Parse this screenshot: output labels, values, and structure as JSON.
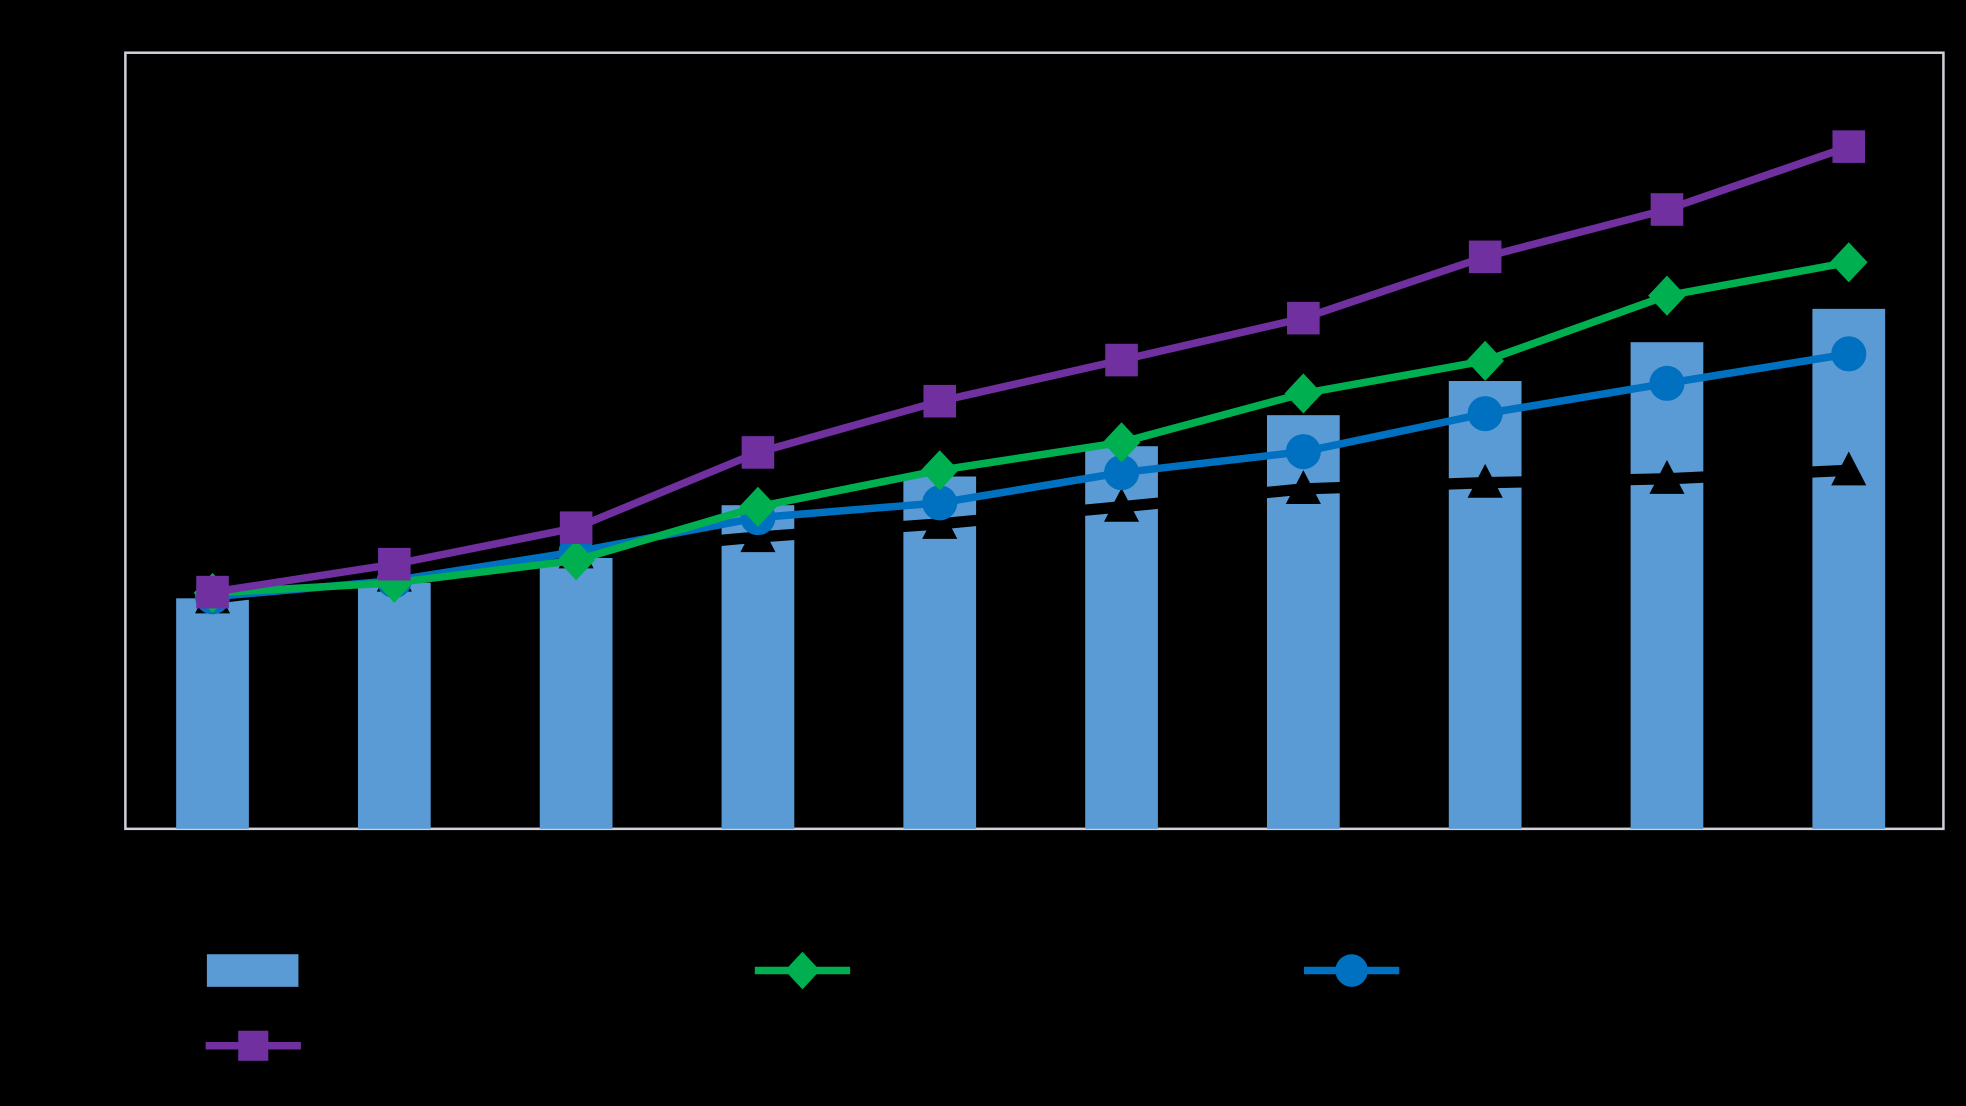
{
  "chart_data": {
    "type": "bar+line",
    "title": "",
    "xlabel": "",
    "ylabel": "",
    "ylim": [
      0,
      100
    ],
    "grid": false,
    "legend_position": "bottom",
    "background": "#000000",
    "categories_count_note": "",
    "bars": {
      "color": "#5b9bd5",
      "values": [
        29.7,
        31.7,
        34.9,
        41.7,
        45.4,
        49.3,
        53.3,
        57.7,
        62.7,
        67.0
      ]
    },
    "series": [
      {
        "marker": "square",
        "color": "#7030a0",
        "values": [
          30.5,
          34.1,
          38.8,
          48.5,
          55.1,
          60.4,
          65.8,
          73.7,
          79.8,
          87.9
        ]
      },
      {
        "marker": "diamond",
        "color": "#00b050",
        "values": [
          30.4,
          31.7,
          34.6,
          41.5,
          46.2,
          49.8,
          56.1,
          60.3,
          68.7,
          73.0
        ]
      },
      {
        "marker": "circle",
        "color": "#0070c0",
        "values": [
          29.9,
          32.0,
          35.7,
          40.1,
          42.0,
          45.9,
          48.6,
          53.5,
          57.4,
          61.2
        ]
      },
      {
        "marker": "triangle",
        "color": "#000000",
        "values": [
          29.7,
          32.5,
          35.5,
          37.6,
          39.3,
          41.5,
          43.8,
          44.6,
          45.1,
          46.2
        ]
      }
    ]
  }
}
